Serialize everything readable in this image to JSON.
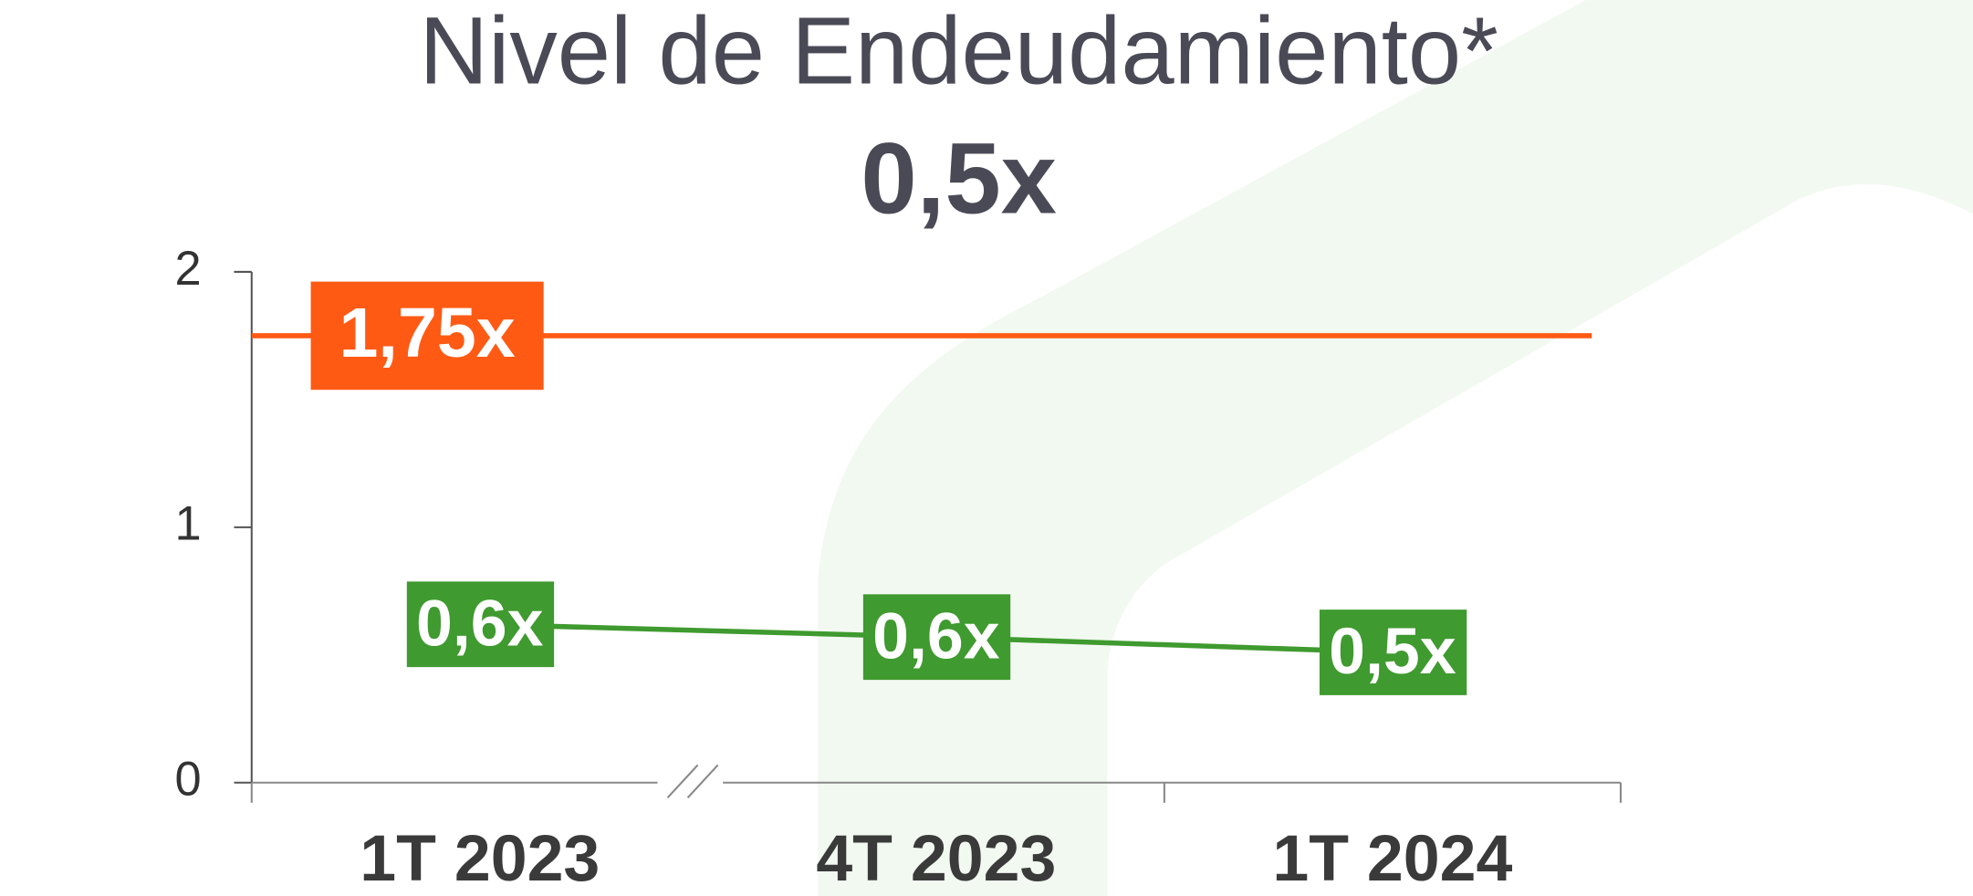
{
  "chart_data": {
    "type": "line",
    "title": "Nivel de Endeudamiento*",
    "subtitle": "0,5x",
    "categories": [
      "1T 2023",
      "4T 2023",
      "1T 2024"
    ],
    "series": [
      {
        "name": "Nivel de Endeudamiento",
        "color": "#3f9a2f",
        "values": [
          0.62,
          0.57,
          0.51
        ],
        "value_labels": [
          "0,6x",
          "0,6x",
          "0,5x"
        ]
      }
    ],
    "reference_line": {
      "value": 1.75,
      "label": "1,75x",
      "color": "#ff5a14"
    },
    "ylim": [
      0,
      2
    ],
    "yticks": [
      0,
      1,
      2
    ],
    "axis_break": true
  }
}
